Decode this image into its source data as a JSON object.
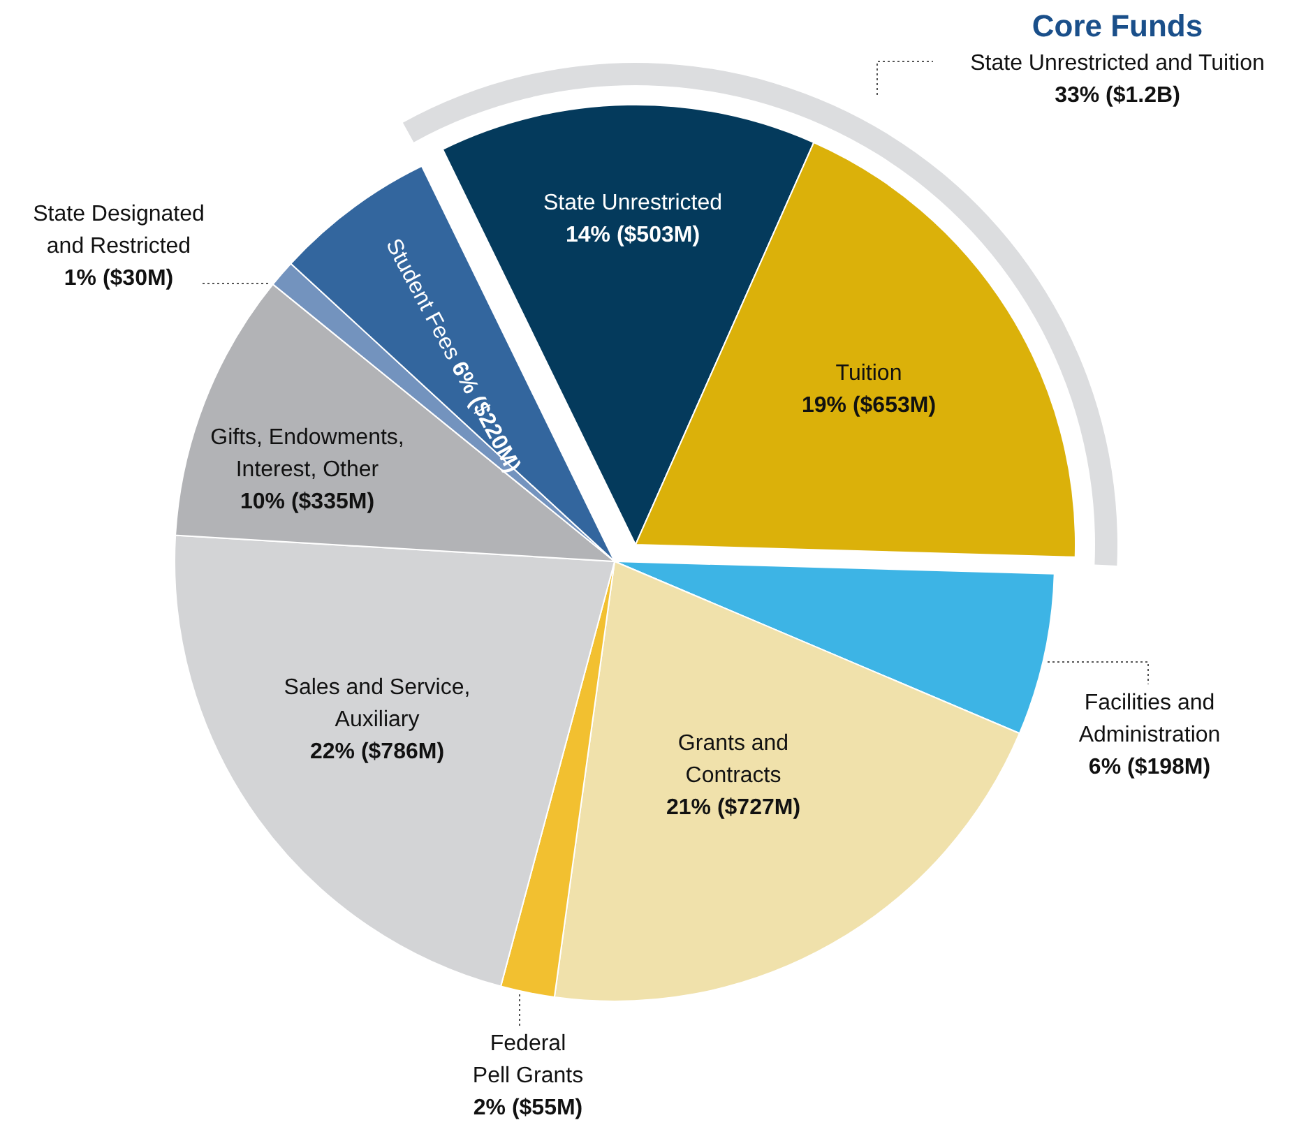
{
  "chart_data": {
    "type": "pie",
    "categories": [
      "State Unrestricted",
      "Tuition",
      "Facilities and Administration",
      "Grants and Contracts",
      "Federal Pell Grants",
      "Sales and Service, Auxiliary",
      "Gifts, Endowments, Interest, Other",
      "State Designated and Restricted",
      "Student Fees"
    ],
    "values": [
      14,
      19,
      6,
      21,
      2,
      22,
      10,
      1,
      6
    ],
    "value_labels": [
      "14% ($503M)",
      "19% ($653M)",
      "6% ($198M)",
      "21% ($727M)",
      "2% ($55M)",
      "22% ($786M)",
      "10% ($335M)",
      "1% ($30M)",
      "6% ($220M)"
    ],
    "colors": [
      "#043a5c",
      "#dbb10a",
      "#3db4e5",
      "#f0e1ab",
      "#f2c030",
      "#d3d4d6",
      "#b2b3b6",
      "#7393be",
      "#33669e"
    ],
    "annotations": [
      "Core Funds",
      "State Unrestricted and Tuition",
      "33% ($1.2B)"
    ]
  }
}
